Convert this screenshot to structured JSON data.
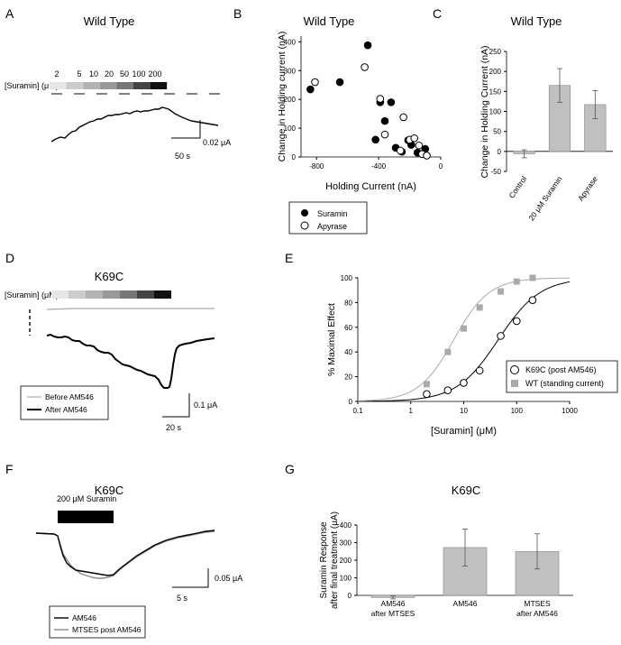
{
  "panels": {
    "A": {
      "letter": "A",
      "title": "Wild Type",
      "suramin_label": "[Suramin] (μM)",
      "concentrations": [
        "2",
        "5",
        "10",
        "20",
        "50",
        "100",
        "200"
      ],
      "gradient_colors": [
        "#e6e6e6",
        "#cccccc",
        "#b3b3b3",
        "#999999",
        "#777777",
        "#444444",
        "#111111"
      ],
      "scale_y": "0.02 μA",
      "scale_x": "50 s"
    },
    "B": {
      "letter": "B",
      "title": "Wild Type"
    },
    "C": {
      "letter": "C",
      "title": "Wild Type"
    },
    "D": {
      "letter": "D",
      "title": "K69C",
      "suramin_label": "[Suramin] (μM)",
      "legend": [
        "Before AM546",
        "After AM546"
      ],
      "scale_y": "0.1 μA",
      "scale_x": "20 s"
    },
    "E": {
      "letter": "E"
    },
    "F": {
      "letter": "F",
      "title": "K69C",
      "bar_label": "200 μM Suramin",
      "legend": [
        "AM546",
        "MTSES post AM546"
      ],
      "scale_y": "0.05 μA",
      "scale_x": "5 s"
    },
    "G": {
      "letter": "G",
      "title": "K69C"
    }
  },
  "chart_data": [
    {
      "id": "B",
      "type": "scatter",
      "xlabel": "Holding Current (nA)",
      "ylabel": "Change in Holding current  (nA)",
      "xlim": [
        -900,
        0
      ],
      "ylim": [
        0,
        420
      ],
      "xticks": [
        -800,
        -400,
        0
      ],
      "yticks": [
        0,
        100,
        200,
        300,
        400
      ],
      "tick_labels_x": [
        "-800",
        "-400",
        "0"
      ],
      "tick_labels_y": [
        "0",
        "100",
        "200",
        "300",
        "400"
      ],
      "series": [
        {
          "name": "Suramin",
          "style": "filled",
          "points": [
            [
              -840,
              235
            ],
            [
              -650,
              260
            ],
            [
              -470,
              388
            ],
            [
              -420,
              60
            ],
            [
              -390,
              190
            ],
            [
              -360,
              125
            ],
            [
              -320,
              190
            ],
            [
              -290,
              32
            ],
            [
              -250,
              18
            ],
            [
              -210,
              58
            ],
            [
              -190,
              42
            ],
            [
              -150,
              15
            ],
            [
              -100,
              28
            ]
          ]
        },
        {
          "name": "Apyrase",
          "style": "open",
          "points": [
            [
              -810,
              260
            ],
            [
              -490,
              312
            ],
            [
              -390,
              202
            ],
            [
              -360,
              78
            ],
            [
              -240,
              138
            ],
            [
              -200,
              60
            ],
            [
              -170,
              65
            ],
            [
              -140,
              40
            ],
            [
              -120,
              10
            ],
            [
              -90,
              5
            ],
            [
              -260,
              22
            ]
          ]
        }
      ],
      "legend": [
        "Suramin",
        "Apyrase"
      ],
      "legend_position": "bottom"
    },
    {
      "id": "C",
      "type": "bar",
      "ylabel": "Change in Holding Current (nA)",
      "categories": [
        "Control",
        "20 μM Suramin",
        "Apyrase"
      ],
      "values": [
        -6,
        165,
        117
      ],
      "errors": [
        10,
        42,
        35
      ],
      "ylim": [
        -50,
        250
      ],
      "yticks": [
        -50,
        0,
        50,
        100,
        150,
        200,
        250
      ],
      "tick_labels_y": [
        "-50",
        "0",
        "50",
        "100",
        "150",
        "200",
        "250"
      ]
    },
    {
      "id": "E",
      "type": "scatter",
      "xlabel": "[Suramin] (μM)",
      "ylabel": "% Maximal Effect",
      "xscale": "log",
      "xlim": [
        0.1,
        1000
      ],
      "ylim": [
        0,
        100
      ],
      "xticks": [
        0.1,
        1,
        10,
        100,
        1000
      ],
      "yticks": [
        0,
        20,
        40,
        60,
        80,
        100
      ],
      "tick_labels_x": [
        "0.1",
        "1",
        "10",
        "100",
        "1000"
      ],
      "tick_labels_y": [
        "0",
        "20",
        "40",
        "60",
        "80",
        "100"
      ],
      "series": [
        {
          "name": "K69C (post AM546)",
          "marker": "circle-open",
          "color": "#000000",
          "x": [
            2,
            5,
            10,
            20,
            50,
            100,
            200
          ],
          "y": [
            6,
            9,
            15,
            25,
            53,
            65,
            82
          ],
          "ec50": 45,
          "hill": 1.1
        },
        {
          "name": "WT (standing current)",
          "marker": "square",
          "color": "#aaaaaa",
          "x": [
            2,
            5,
            10,
            20,
            50,
            100,
            200
          ],
          "y": [
            14,
            40,
            59,
            76,
            89,
            97,
            100
          ],
          "ec50": 6.5,
          "hill": 1.3
        }
      ],
      "legend_position": "bottom-right"
    },
    {
      "id": "G",
      "type": "bar",
      "ylabel": "Suramin Response after final treatment (μA)",
      "categories": [
        "AM546 after MTSES",
        "AM546",
        "MTSES after AM546"
      ],
      "values": [
        -12,
        272,
        250
      ],
      "errors": [
        8,
        105,
        100
      ],
      "ylim": [
        0,
        400
      ],
      "yticks": [
        0,
        100,
        200,
        300,
        400
      ],
      "tick_labels_y": [
        "0",
        "100",
        "200",
        "300",
        "400"
      ]
    }
  ]
}
